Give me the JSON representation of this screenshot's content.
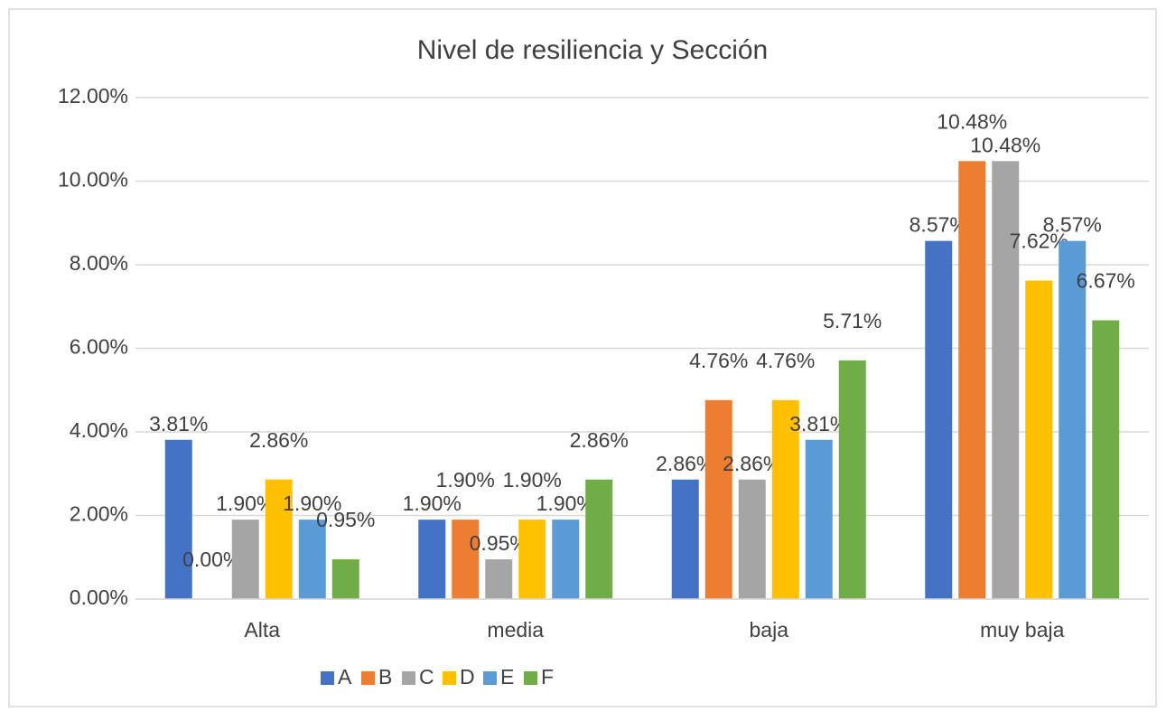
{
  "chart_data": {
    "type": "bar",
    "title": "Nivel de resiliencia y Sección",
    "categories": [
      "Alta",
      "media",
      "baja",
      "muy baja"
    ],
    "series": [
      {
        "name": "A",
        "color": "#4472c4",
        "values": [
          3.81,
          1.9,
          2.86,
          8.57
        ],
        "value_labels": [
          "3.81%",
          "1.90%",
          "2.86%",
          "8.57%"
        ]
      },
      {
        "name": "B",
        "color": "#ed7d31",
        "values": [
          0.0,
          1.9,
          4.76,
          10.48
        ],
        "value_labels": [
          "0.00%",
          "1.90%",
          "4.76%",
          "10.48%"
        ]
      },
      {
        "name": "C",
        "color": "#a5a5a5",
        "values": [
          1.9,
          0.95,
          2.86,
          10.48
        ],
        "value_labels": [
          "1.90%",
          "0.95%",
          "2.86%",
          "10.48%"
        ]
      },
      {
        "name": "D",
        "color": "#ffc000",
        "values": [
          2.86,
          1.9,
          4.76,
          7.62
        ],
        "value_labels": [
          "2.86%",
          "1.90%",
          "4.76%",
          "7.62%"
        ]
      },
      {
        "name": "E",
        "color": "#5b9bd5",
        "values": [
          1.9,
          1.9,
          3.81,
          8.57
        ],
        "value_labels": [
          "1.90%",
          "1.90%",
          "3.81%",
          "8.57%"
        ]
      },
      {
        "name": "F",
        "color": "#70ad47",
        "values": [
          0.95,
          2.86,
          5.71,
          6.67
        ],
        "value_labels": [
          "0.95%",
          "2.86%",
          "5.71%",
          "6.67%"
        ]
      }
    ],
    "ylim": [
      0,
      12
    ],
    "yticks": [
      {
        "value": 0,
        "label": "0.00%"
      },
      {
        "value": 2,
        "label": "2.00%"
      },
      {
        "value": 4,
        "label": "4.00%"
      },
      {
        "value": 6,
        "label": "6.00%"
      },
      {
        "value": 8,
        "label": "8.00%"
      },
      {
        "value": 10,
        "label": "10.00%"
      },
      {
        "value": 12,
        "label": "12.00%"
      }
    ],
    "grid": true,
    "legend": "bottom"
  }
}
